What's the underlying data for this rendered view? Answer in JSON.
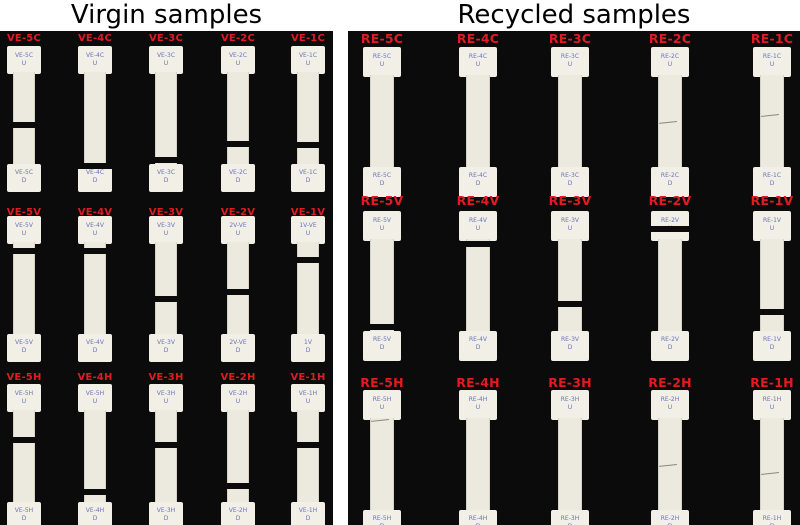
{
  "headings": {
    "left": "Virgin samples",
    "right": "Recycled samples"
  },
  "virgin": {
    "rows": [
      {
        "row": "C",
        "specimens": [
          {
            "label": "VE-5C",
            "top_mark": "VE-5C\nU",
            "bottom_mark": "VE-5C\nD",
            "break": "gap",
            "break_at": 0.52
          },
          {
            "label": "VE-4C",
            "top_mark": "VE-4C\nU",
            "bottom_mark": "VE-4C\nD",
            "break": "gap",
            "break_at": 0.8
          },
          {
            "label": "VE-3C",
            "top_mark": "VE-3C\nU",
            "bottom_mark": "VE-3C\nD",
            "break": "gap",
            "break_at": 0.76
          },
          {
            "label": "VE-2C",
            "top_mark": "VE-2C\nU",
            "bottom_mark": "VE-2C\nD",
            "break": "gap",
            "break_at": 0.65
          },
          {
            "label": "VE-1C",
            "top_mark": "VE-1C\nU",
            "bottom_mark": "VE-1C\nD",
            "break": "gap",
            "break_at": 0.66
          }
        ]
      },
      {
        "row": "V",
        "specimens": [
          {
            "label": "VE-5V",
            "top_mark": "VE-5V\nU",
            "bottom_mark": "VE-5V\nD",
            "break": "gap",
            "break_at": 0.22
          },
          {
            "label": "VE-4V",
            "top_mark": "VE-4V\nU",
            "bottom_mark": "VE-4V\nD",
            "break": "gap",
            "break_at": 0.22
          },
          {
            "label": "VE-3V",
            "top_mark": "VE-3V\nU",
            "bottom_mark": "VE-3V\nD",
            "break": "gap",
            "break_at": 0.55
          },
          {
            "label": "VE-2V",
            "top_mark": "2V-VE\nU",
            "bottom_mark": "2V-VE\nD",
            "break": "gap",
            "break_at": 0.5
          },
          {
            "label": "VE-1V",
            "top_mark": "1V-VE\nU",
            "bottom_mark": "1V\nD",
            "break": "gap",
            "break_at": 0.28
          }
        ]
      },
      {
        "row": "H",
        "specimens": [
          {
            "label": "VE-5H",
            "top_mark": "VE-5H\nU",
            "bottom_mark": "VE-5H\nD",
            "break": "gap",
            "break_at": 0.36
          },
          {
            "label": "VE-4H",
            "top_mark": "VE-5H\nU",
            "bottom_mark": "VE-4H\nD",
            "break": "gap",
            "break_at": 0.72
          },
          {
            "label": "VE-3H",
            "top_mark": "VE-3H\nU",
            "bottom_mark": "VE-3H\nD",
            "break": "gap",
            "break_at": 0.4
          },
          {
            "label": "VE-2H",
            "top_mark": "VE-2H\nU",
            "bottom_mark": "VE-2H\nD",
            "break": "gap",
            "break_at": 0.68
          },
          {
            "label": "VE-1H",
            "top_mark": "VE-1H\nU",
            "bottom_mark": "VE-1H\nD",
            "break": "gap",
            "break_at": 0.4
          }
        ]
      }
    ]
  },
  "recycled": {
    "rows": [
      {
        "row": "C",
        "specimens": [
          {
            "label": "RE-5C",
            "top_mark": "RE-5C\nU",
            "bottom_mark": "RE-5C\nD",
            "break": "none",
            "break_at": 0.5
          },
          {
            "label": "RE-4C",
            "top_mark": "RE-4C\nU",
            "bottom_mark": "RE-4C\nD",
            "break": "none",
            "break_at": 0.5
          },
          {
            "label": "RE-3C",
            "top_mark": "RE-3C\nU",
            "bottom_mark": "RE-3C\nD",
            "break": "none",
            "break_at": 0.5
          },
          {
            "label": "RE-2C",
            "top_mark": "RE-2C\nU",
            "bottom_mark": "RE-2C\nD",
            "break": "crack",
            "break_at": 0.5
          },
          {
            "label": "RE-1C",
            "top_mark": "RE-1C\nU",
            "bottom_mark": "RE-1C\nD",
            "break": "crack",
            "break_at": 0.45
          }
        ]
      },
      {
        "row": "V",
        "specimens": [
          {
            "label": "RE-5V",
            "top_mark": "RE-5V\nU",
            "bottom_mark": "RE-5V\nD",
            "break": "gap",
            "break_at": 0.75
          },
          {
            "label": "RE-4V",
            "top_mark": "RE-4V\nU",
            "bottom_mark": "RE-4V\nD",
            "break": "gap",
            "break_at": 0.2
          },
          {
            "label": "RE-3V",
            "top_mark": "RE-3V\nU",
            "bottom_mark": "RE-3V\nD",
            "break": "gap",
            "break_at": 0.6
          },
          {
            "label": "RE-2V",
            "top_mark": "RE-2V\nU",
            "bottom_mark": "RE-2V\nD",
            "break": "gap",
            "break_at": 0.1
          },
          {
            "label": "RE-1V",
            "top_mark": "RE-1V\nU",
            "bottom_mark": "RE-1V\nD",
            "break": "gap",
            "break_at": 0.65
          }
        ]
      },
      {
        "row": "H",
        "specimens": [
          {
            "label": "RE-5H",
            "top_mark": "RE-5H\nU",
            "bottom_mark": "RE-5H\nD",
            "break": "crack",
            "break_at": 0.2
          },
          {
            "label": "RE-4H",
            "top_mark": "RE-4H\nU",
            "bottom_mark": "RE-4H\nD",
            "break": "none",
            "break_at": 0.5
          },
          {
            "label": "RE-3H",
            "top_mark": "RE-3H\nU",
            "bottom_mark": "RE-3H\nD",
            "break": "none",
            "break_at": 0.5
          },
          {
            "label": "RE-2H",
            "top_mark": "RE-2H\nU",
            "bottom_mark": "RE-2H\nD",
            "break": "crack",
            "break_at": 0.5
          },
          {
            "label": "RE-1H",
            "top_mark": "RE-1H\nU",
            "bottom_mark": "RE-1H\nD",
            "break": "crack",
            "break_at": 0.55
          }
        ]
      }
    ]
  }
}
